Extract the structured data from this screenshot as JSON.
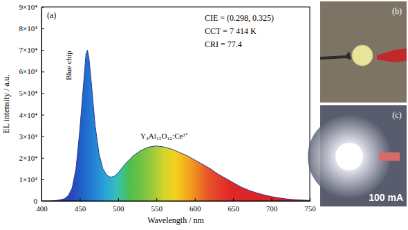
{
  "chart_data": {
    "type": "area",
    "panel_label": "(a)",
    "x_label": "Wavelength / nm",
    "y_label": "EL intensity / a.u.",
    "annotations": [
      "CIE = (0.298, 0.325)",
      "CCT = 7 414 K",
      "CRI = 77.4",
      "Blue chip",
      "Y₃Al₁₅O₁₂:Ce³⁺"
    ],
    "x": [
      400,
      410,
      420,
      430,
      435,
      440,
      445,
      450,
      455,
      458,
      460,
      462,
      465,
      470,
      475,
      480,
      485,
      490,
      495,
      500,
      510,
      520,
      530,
      540,
      550,
      560,
      570,
      580,
      590,
      600,
      610,
      620,
      630,
      640,
      650,
      660,
      670,
      680,
      690,
      700,
      710,
      720,
      730,
      740,
      750
    ],
    "values": [
      0,
      0,
      200,
      1000,
      2500,
      6000,
      15000,
      33000,
      55000,
      68000,
      70000,
      66000,
      55000,
      35000,
      22000,
      15000,
      12000,
      11000,
      11500,
      13000,
      17500,
      21000,
      23500,
      25000,
      25500,
      25000,
      24000,
      22500,
      21000,
      19000,
      17000,
      15000,
      12500,
      10500,
      8500,
      6500,
      5000,
      3800,
      2800,
      2000,
      1400,
      900,
      600,
      400,
      200
    ],
    "xlim": [
      400,
      750
    ],
    "xticks": [
      400,
      450,
      500,
      550,
      600,
      650,
      700,
      750
    ],
    "ylim": [
      0,
      90000
    ],
    "yticks": [
      0,
      {
        "value": 10000,
        "label": "1×10⁴"
      },
      {
        "value": 20000,
        "label": "2×10⁴"
      },
      {
        "value": 30000,
        "label": "3×10⁴"
      },
      {
        "value": 40000,
        "label": "4×10⁴"
      },
      {
        "value": 50000,
        "label": "5×10⁴"
      },
      {
        "value": 60000,
        "label": "6×10⁴"
      },
      {
        "value": 70000,
        "label": "7×10⁴"
      },
      {
        "value": 80000,
        "label": "8×10⁴"
      },
      {
        "value": 90000,
        "label": "9×10⁴"
      }
    ],
    "grid": false
  },
  "photos": [
    {
      "label": "(b)"
    },
    {
      "label": "(c)",
      "caption": "100 mA"
    }
  ]
}
